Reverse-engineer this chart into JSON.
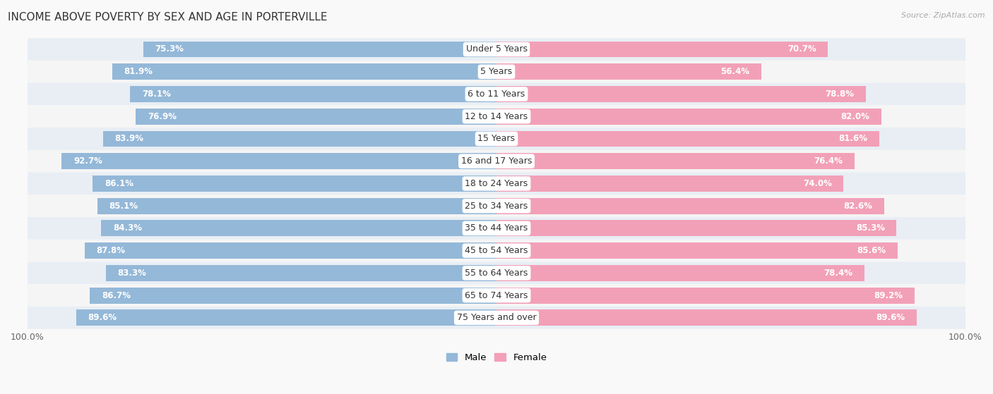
{
  "title": "INCOME ABOVE POVERTY BY SEX AND AGE IN PORTERVILLE",
  "source": "Source: ZipAtlas.com",
  "categories": [
    "Under 5 Years",
    "5 Years",
    "6 to 11 Years",
    "12 to 14 Years",
    "15 Years",
    "16 and 17 Years",
    "18 to 24 Years",
    "25 to 34 Years",
    "35 to 44 Years",
    "45 to 54 Years",
    "55 to 64 Years",
    "65 to 74 Years",
    "75 Years and over"
  ],
  "male_values": [
    75.3,
    81.9,
    78.1,
    76.9,
    83.9,
    92.7,
    86.1,
    85.1,
    84.3,
    87.8,
    83.3,
    86.7,
    89.6
  ],
  "female_values": [
    70.7,
    56.4,
    78.8,
    82.0,
    81.6,
    76.4,
    74.0,
    82.6,
    85.3,
    85.6,
    78.4,
    89.2,
    89.6
  ],
  "male_color": "#94b8d8",
  "female_color": "#f2a0b8",
  "male_label": "Male",
  "female_label": "Female",
  "row_colors": [
    "#e8eef4",
    "#f5f5f5"
  ],
  "title_fontsize": 11,
  "label_fontsize": 9,
  "value_fontsize": 8.5
}
